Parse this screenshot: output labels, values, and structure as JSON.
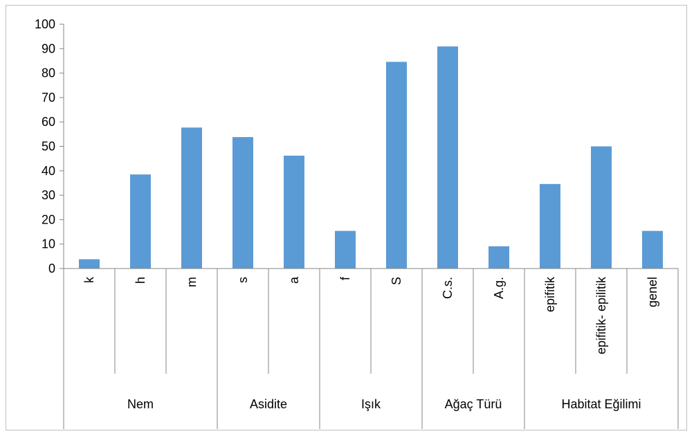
{
  "chart_data": {
    "type": "bar",
    "title": "",
    "xlabel": "",
    "ylabel": "",
    "ylim": [
      0,
      100
    ],
    "yticks": [
      0,
      10,
      20,
      30,
      40,
      50,
      60,
      70,
      80,
      90,
      100
    ],
    "grid": false,
    "legend": "none",
    "bar_color": "#5b9bd5",
    "categories": [
      "k",
      "h",
      "m",
      "s",
      "a",
      "f",
      "S",
      "C.s.",
      "A.g.",
      "epifitik",
      "epifitik- epilitik",
      "genel"
    ],
    "values": [
      3.8,
      38.5,
      57.7,
      53.8,
      46.2,
      15.4,
      84.6,
      90.9,
      9.1,
      34.6,
      50.0,
      15.4
    ],
    "groups": [
      {
        "label": "Nem",
        "count": 3
      },
      {
        "label": "Asidite",
        "count": 2
      },
      {
        "label": "Işık",
        "count": 2
      },
      {
        "label": "Ağaç Türü",
        "count": 2
      },
      {
        "label": "Habitat Eğilimi",
        "count": 3
      }
    ]
  }
}
